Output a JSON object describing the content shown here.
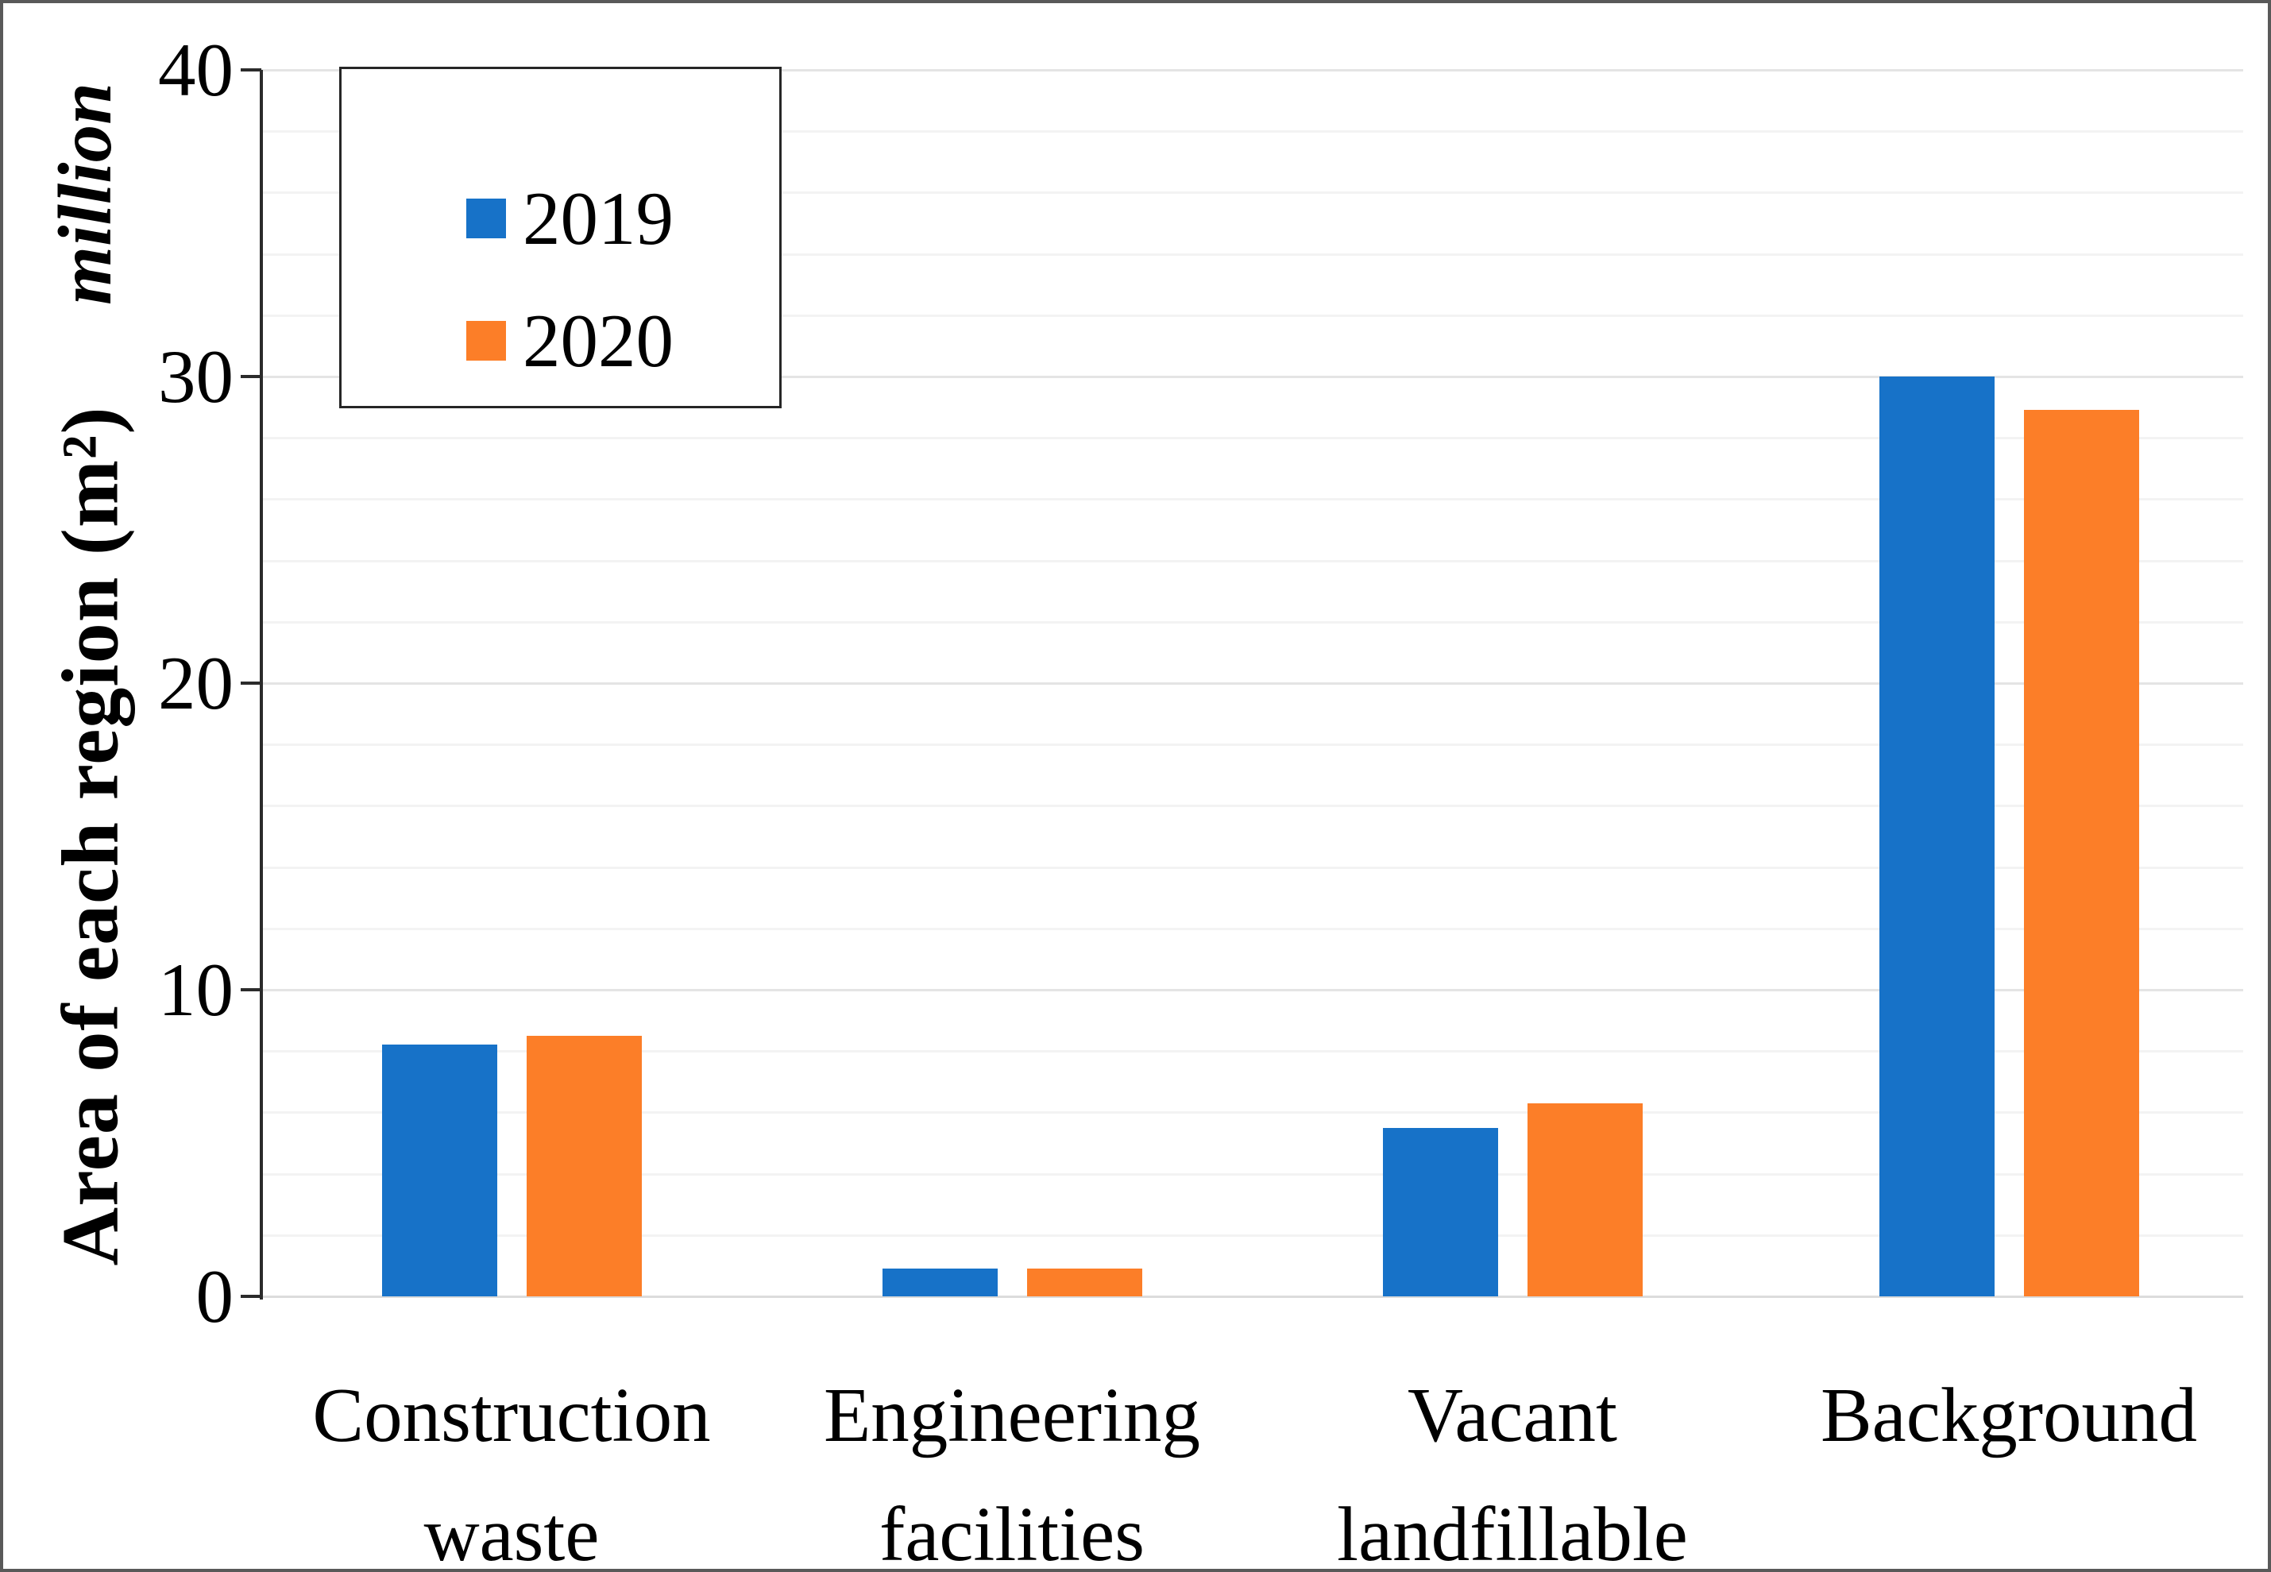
{
  "figure": {
    "background_color": "#ffffff",
    "border_color": "#595959"
  },
  "y_axis": {
    "title": "Area of each region (m²)",
    "unit_label": "million",
    "ticks": [
      0,
      10,
      20,
      30,
      40
    ],
    "minor_gridline_step": 2
  },
  "legend": {
    "items": [
      {
        "label": "2019",
        "color": "#1772C8"
      },
      {
        "label": "2020",
        "color": "#FC7E28"
      }
    ]
  },
  "chart_data": {
    "type": "bar",
    "categories": [
      "Construction\nwaste",
      "Engineering\nfacilities",
      "Vacant\nlandfillable",
      "Background"
    ],
    "series": [
      {
        "name": "2019",
        "color": "#1772C8",
        "values": [
          8.2,
          0.9,
          5.5,
          30.0
        ]
      },
      {
        "name": "2020",
        "color": "#FC7E28",
        "values": [
          8.5,
          0.9,
          6.3,
          28.9
        ]
      }
    ],
    "title": "",
    "xlabel": "",
    "ylabel": "Area of each region (m²), million",
    "ylim": [
      0,
      40
    ],
    "grid": "horizontal, minor every 2 units, major every 10",
    "legend_position": "top-left"
  }
}
